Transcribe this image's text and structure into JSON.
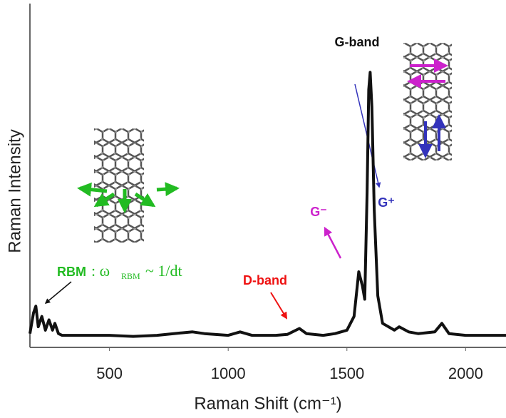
{
  "chart_data": {
    "type": "line",
    "x_label": "Raman Shift (cm⁻¹)",
    "y_label": "Raman Intensity",
    "x": [
      165,
      180,
      190,
      200,
      215,
      230,
      245,
      260,
      270,
      285,
      300,
      400,
      500,
      600,
      700,
      800,
      850,
      900,
      1000,
      1050,
      1100,
      1200,
      1250,
      1300,
      1330,
      1400,
      1450,
      1500,
      1530,
      1550,
      1565,
      1575,
      1585,
      1592,
      1598,
      1605,
      1615,
      1630,
      1650,
      1700,
      1720,
      1760,
      1800,
      1870,
      1900,
      1930,
      2000,
      2100,
      2170
    ],
    "values": [
      4,
      10,
      12,
      6,
      9,
      5,
      8,
      5,
      7,
      4,
      3.5,
      3.5,
      3.5,
      3.2,
      3.5,
      4.2,
      4.5,
      4,
      3.5,
      4.5,
      3.5,
      3.5,
      3.8,
      5.5,
      4,
      3.5,
      4,
      5,
      9,
      22,
      18,
      14,
      45,
      75,
      80,
      70,
      40,
      15,
      7,
      5,
      6,
      4.5,
      4,
      4.5,
      7,
      4,
      3.5,
      3.5,
      3.5
    ],
    "color": "#111111",
    "xlim": [
      165,
      2170
    ],
    "ylim": [
      0,
      100
    ],
    "xticks": [
      500,
      1000,
      1500,
      2000
    ],
    "annotations": [
      {
        "text": "G-band",
        "color": "#111111"
      },
      {
        "text": "D-band",
        "color": "#ee1111"
      },
      {
        "text": "G⁻",
        "color": "#cc22cc"
      },
      {
        "text": "G⁺",
        "color": "#3333bb"
      },
      {
        "text": "RBM",
        "color": "#22bb22"
      }
    ],
    "formula": {
      "omega": ": ω",
      "sub": "RBM",
      "rest": "~ 1/dt"
    }
  }
}
